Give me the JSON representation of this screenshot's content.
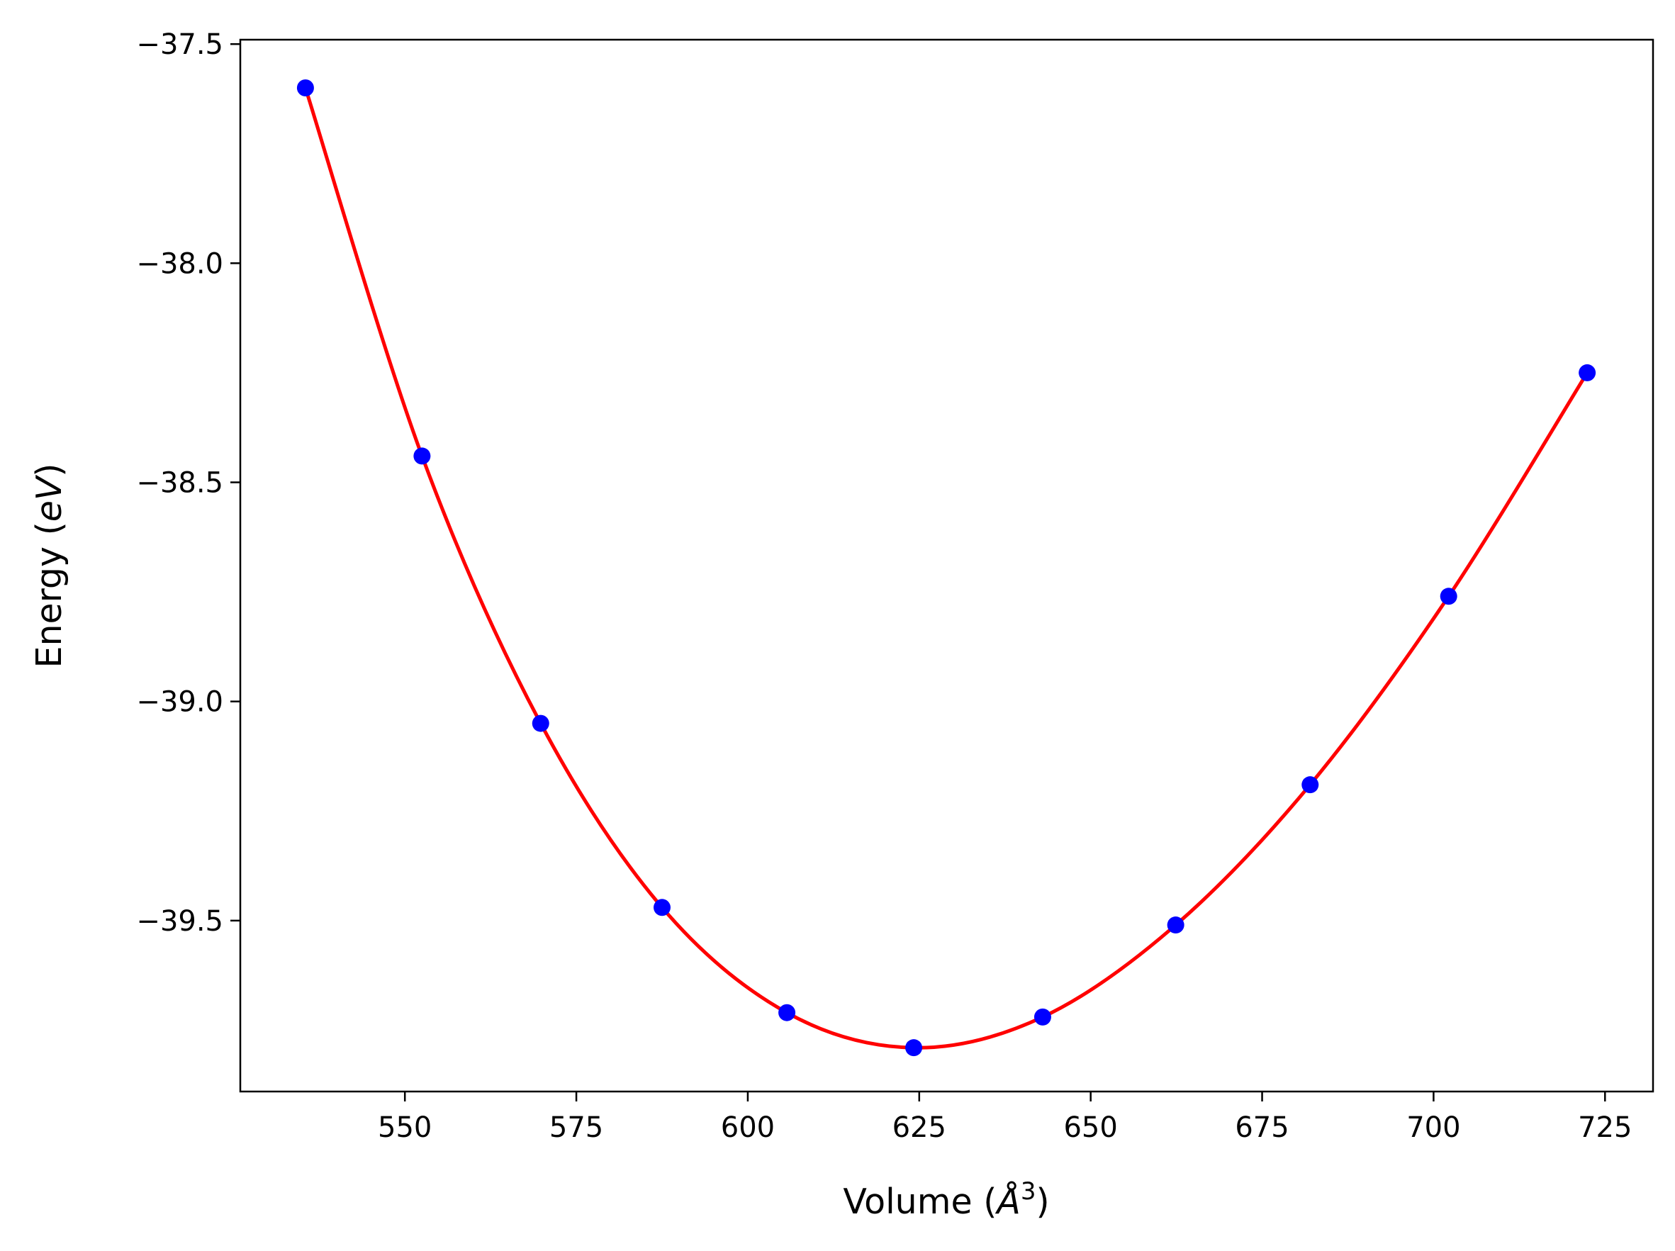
{
  "chart_data": {
    "type": "scatter",
    "xlabel_main": "Volume (",
    "xlabel_unit": "Å",
    "xlabel_sup": "3",
    "xlabel_end": ")",
    "ylabel_main": "Energy (",
    "ylabel_unit": "eV",
    "ylabel_end": ")",
    "xlim": [
      526,
      732
    ],
    "ylim": [
      -39.89,
      -37.49
    ],
    "xticks": [
      550,
      575,
      600,
      625,
      650,
      675,
      700,
      725
    ],
    "yticks": [
      -37.5,
      -38.0,
      -38.5,
      -39.0,
      -39.5
    ],
    "ytick_labels": [
      "−37.5",
      "−38.0",
      "−38.5",
      "−39.0",
      "−39.5"
    ],
    "grid": false,
    "series": [
      {
        "kind": "points",
        "color": "#0000ff",
        "x": [
          535.5,
          552.5,
          569.8,
          587.5,
          605.7,
          624.2,
          643.0,
          662.4,
          682.0,
          702.2,
          722.4
        ],
        "y": [
          -37.6,
          -38.44,
          -39.05,
          -39.47,
          -39.71,
          -39.79,
          -39.72,
          -39.51,
          -39.19,
          -38.76,
          -38.25
        ]
      },
      {
        "kind": "fit-curve",
        "color": "#ff0000",
        "x": [
          535.5,
          552.5,
          569.8,
          587.5,
          605.7,
          624.2,
          643.0,
          662.4,
          682.0,
          702.2,
          722.4
        ],
        "y": [
          -37.6,
          -38.44,
          -39.05,
          -39.47,
          -39.71,
          -39.79,
          -39.72,
          -39.51,
          -39.19,
          -38.76,
          -38.25
        ]
      }
    ]
  }
}
